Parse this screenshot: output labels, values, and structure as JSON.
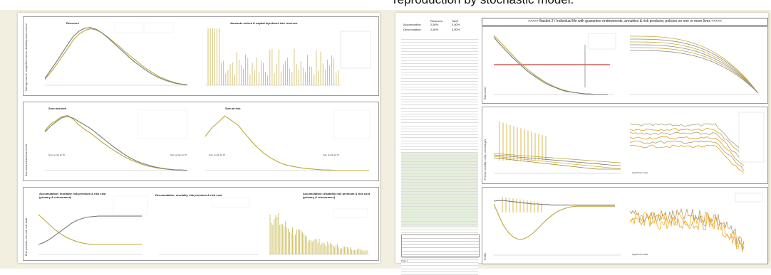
{
  "caption": "reproduction by stochastic model.",
  "left_sheet": {
    "row1": {
      "side_label": "Savings reserve, acquisition reserve, disability claims reserve",
      "left_title": "Reserves",
      "right_title": "Amounts retired & capital injections into reserves"
    },
    "row2": {
      "side_label": "Sum assured and sum at risk",
      "left_title": "Sum assured",
      "right_title": "Sum at risk",
      "left_note_a": "Sum at risk for PI",
      "left_note_b": "Sum at risk for PI",
      "right_note_a": "Sum at risk for PI",
      "right_note_b": "Sum at risk for PI"
    },
    "row3": {
      "side_label": "Risk premium, risk cost, risk result",
      "left_title": "Accumulation: mortality risk premium & risk cost (primary & reinsurance)",
      "mid_title": "Decumulation: mortality risk premium & risk cost",
      "right_title": "Accumulation: disability risk premium & risk cost (primary & reinsurance)"
    }
  },
  "right_sheet": {
    "header": ">>>>>   Basket 2  /  Individual life with guarantee endowments, annuities & risk products; policies on one or more lives   <<<<<",
    "rates": {
      "col1": "Reserves",
      "col2": "Tariff",
      "accumulation_label": "Accumulation:",
      "accumulation_reserves": "2,50%",
      "accumulation_tariff": "3,00%",
      "decumulation_label": "Decumulation:",
      "decumulation_reserves": "2,50%",
      "decumulation_tariff": "3,50%"
    },
    "panel1_side": "Rate vector",
    "panel2_side": "Premia, benefits, costs, cost charges",
    "panel3_side": "Profits",
    "logscale_note": "logarithmic scale",
    "page_label": "Page 1"
  },
  "chart_data": [
    {
      "type": "line",
      "panel": "left-row1-left",
      "series": [
        {
          "values": [
            10,
            22,
            35,
            49,
            63,
            78,
            88,
            94,
            97,
            95,
            90,
            83,
            75,
            67,
            58,
            50,
            42,
            34,
            27,
            21,
            15,
            11,
            7,
            4,
            2,
            1
          ]
        },
        {
          "values": [
            12,
            26,
            40,
            55,
            70,
            84,
            93,
            98,
            99,
            96,
            90,
            82,
            73,
            64,
            55,
            46,
            38,
            31,
            24,
            18,
            13,
            9,
            6,
            3,
            2,
            1
          ]
        }
      ]
    },
    {
      "type": "line",
      "panel": "left-row2-left",
      "series": [
        {
          "values": [
            70,
            82,
            88,
            95,
            97,
            90,
            80,
            72,
            66,
            58,
            50,
            43,
            36,
            30,
            24,
            19,
            15,
            11,
            8,
            6,
            4,
            3,
            2,
            1,
            1,
            0
          ]
        },
        {
          "values": [
            68,
            78,
            86,
            93,
            95,
            92,
            86,
            80,
            74,
            66,
            58,
            50,
            42,
            35,
            28,
            22,
            17,
            13,
            10,
            7,
            5,
            3,
            2,
            1,
            1,
            0
          ]
        }
      ]
    },
    {
      "type": "line",
      "panel": "left-row2-right",
      "series": [
        {
          "values": [
            60,
            75,
            85,
            96,
            88,
            80,
            66,
            52,
            40,
            30,
            22,
            16,
            11,
            8,
            6,
            4,
            3,
            2,
            1,
            1,
            0,
            0,
            0,
            0,
            0,
            0
          ]
        }
      ]
    },
    {
      "type": "line",
      "panel": "left-row3-left",
      "series": [
        {
          "values": [
            80,
            70,
            60,
            50,
            42,
            35,
            30,
            26,
            23,
            21,
            20,
            20,
            20,
            20,
            20,
            20,
            20,
            20,
            20,
            20
          ]
        },
        {
          "values": [
            20,
            24,
            30,
            38,
            46,
            54,
            62,
            68,
            72,
            75,
            76,
            77,
            77,
            77,
            77,
            77,
            77,
            77,
            77,
            77
          ]
        }
      ]
    },
    {
      "type": "line",
      "panel": "right-p1-left",
      "series": [
        {
          "values": [
            98,
            90,
            82,
            74,
            66,
            58,
            51,
            44,
            38,
            32,
            27,
            22,
            18,
            14,
            11,
            8,
            6,
            4,
            3,
            2,
            1,
            1,
            0,
            0,
            0,
            0
          ]
        },
        {
          "values": [
            95,
            86,
            78,
            70,
            62,
            55,
            48,
            41,
            35,
            30,
            25,
            20,
            16,
            13,
            10,
            7,
            5,
            4,
            3,
            2,
            1,
            1,
            0,
            0,
            0,
            0
          ]
        }
      ]
    },
    {
      "type": "line",
      "panel": "right-p3-left",
      "series": [
        {
          "values": [
            90,
            70,
            52,
            40,
            32,
            28,
            28,
            32,
            38,
            46,
            55,
            63,
            70,
            76,
            80,
            83,
            85,
            86,
            86,
            86,
            86,
            86,
            86,
            86,
            86,
            86
          ]
        },
        {
          "values": [
            95,
            96,
            96,
            95,
            94,
            93,
            92,
            91,
            90,
            90,
            89,
            89,
            88,
            88,
            88,
            88,
            88,
            88,
            88,
            88,
            88,
            88,
            88,
            88,
            88,
            88
          ]
        }
      ]
    }
  ]
}
